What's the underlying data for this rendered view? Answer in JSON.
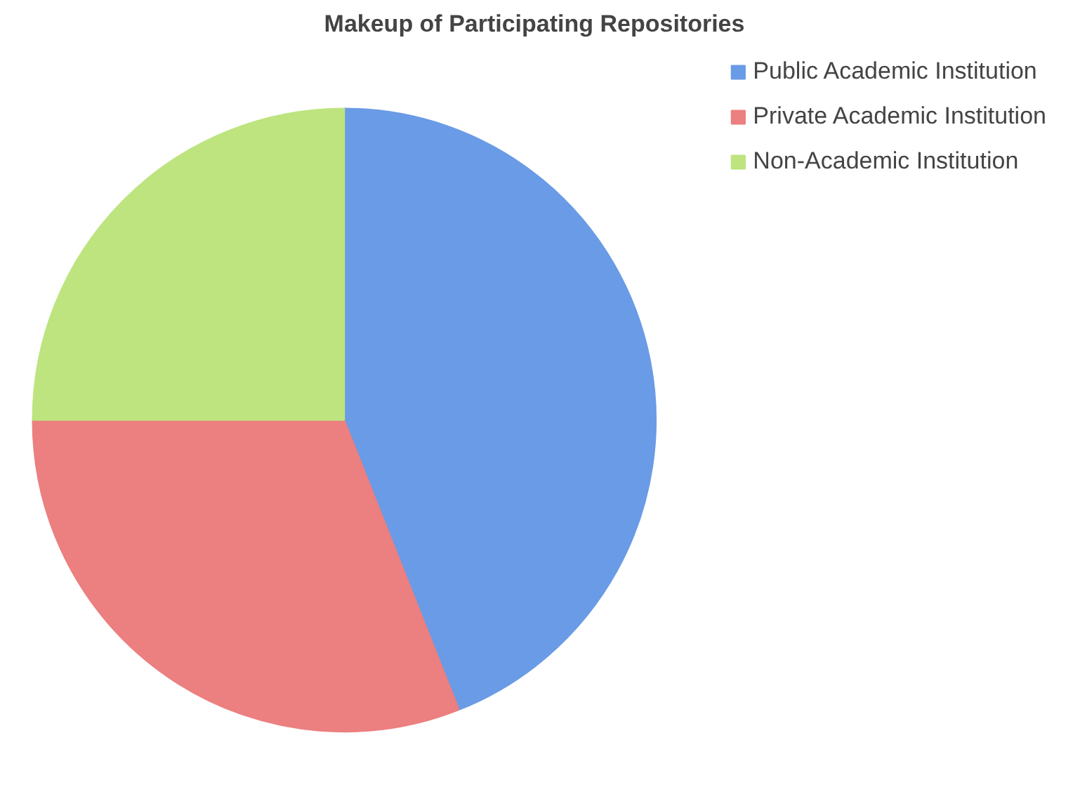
{
  "chart_data": {
    "type": "pie",
    "title": "Makeup of Participating Repositories",
    "categories": [
      "Public Academic Institution",
      "Private Academic Institution",
      "Non-Academic Institution"
    ],
    "values": [
      44,
      31,
      25
    ],
    "colors": [
      "#6a9be6",
      "#ec7f7f",
      "#bde47e"
    ],
    "legend": "right"
  }
}
